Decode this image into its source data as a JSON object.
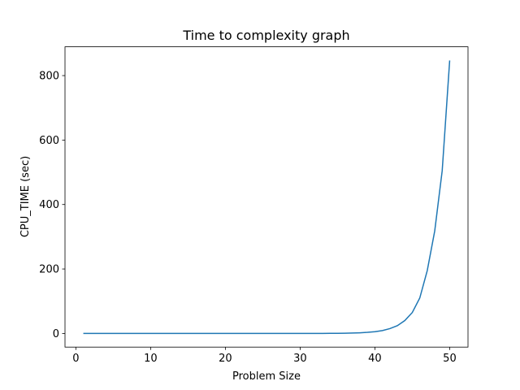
{
  "chart_data": {
    "type": "line",
    "title": "Time to complexity graph",
    "x_label": "Problem Size",
    "y_label": "CPU_TIME (sec)",
    "x": [
      1,
      2,
      3,
      4,
      5,
      6,
      7,
      8,
      9,
      10,
      11,
      12,
      13,
      14,
      15,
      16,
      17,
      18,
      19,
      20,
      21,
      22,
      23,
      24,
      25,
      26,
      27,
      28,
      29,
      30,
      31,
      32,
      33,
      34,
      35,
      36,
      37,
      38,
      39,
      40,
      41,
      42,
      43,
      44,
      45,
      46,
      47,
      48,
      49,
      50
    ],
    "series": [
      {
        "name": "CPU_TIME",
        "color": "#1f77b4",
        "values": [
          0,
          0,
          0,
          0,
          0,
          0,
          0,
          0,
          0,
          0,
          0,
          0,
          0,
          0,
          0,
          0,
          0,
          0,
          0,
          0,
          0,
          0,
          0,
          0,
          0,
          0,
          0,
          0,
          0,
          0,
          0.1,
          0.1,
          0.2,
          0.3,
          0.5,
          0.8,
          1.3,
          2.1,
          3.4,
          5.5,
          9,
          15,
          24,
          40,
          65,
          110,
          195,
          318,
          505,
          847
        ]
      }
    ],
    "xlim": [
      -1.45,
      52.45
    ],
    "ylim": [
      -42.35,
      889.35
    ],
    "xticks": [
      0,
      10,
      20,
      30,
      40,
      50
    ],
    "yticks": [
      0,
      200,
      400,
      600,
      800
    ]
  }
}
